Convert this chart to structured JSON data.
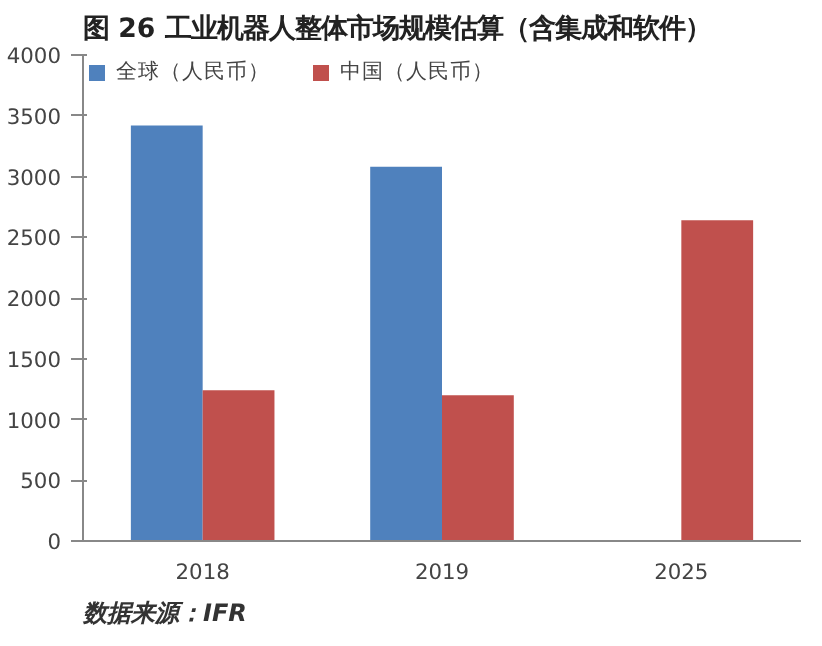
{
  "chart_data": {
    "type": "bar",
    "title": "图 26  工业机器人整体市场规模估算（含集成和软件）",
    "categories": [
      "2018",
      "2019",
      "2025"
    ],
    "series": [
      {
        "name": "全球（人民币）",
        "color": "#4f81bd",
        "values": [
          3420,
          3080,
          null
        ]
      },
      {
        "name": "中国（人民币）",
        "color": "#c0504d",
        "values": [
          1240,
          1200,
          2640
        ]
      }
    ],
    "ylim": [
      0,
      4000
    ],
    "yticks": [
      0,
      500,
      1000,
      1500,
      2000,
      2500,
      3000,
      3500,
      4000
    ],
    "grid": false,
    "legend": "top left",
    "annotations": [
      "数据来源：IFR"
    ]
  }
}
